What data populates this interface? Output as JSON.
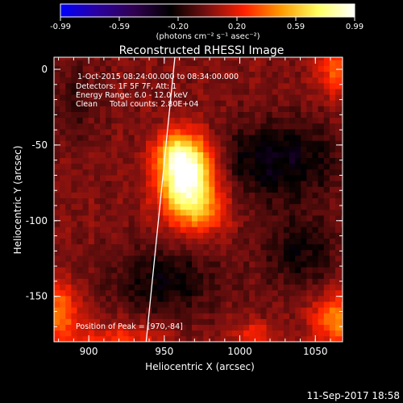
{
  "chart_data": {
    "type": "heatmap",
    "title": "Reconstructed RHESSI Image",
    "xlabel": "Heliocentric X (arcsec)",
    "ylabel": "Heliocentric Y (arcsec)",
    "xlim": [
      877,
      1068
    ],
    "ylim": [
      -180,
      8
    ],
    "xticks": [
      900,
      950,
      1000,
      1050
    ],
    "yticks": [
      0,
      -50,
      -100,
      -150
    ],
    "colorbar": {
      "ticks": [
        "-0.99",
        "-0.59",
        "-0.20",
        "0.20",
        "0.59",
        "0.99"
      ],
      "range": [
        -0.99,
        0.99
      ],
      "units": "(photons cm⁻² s⁻¹ asec⁻²)",
      "colormap": [
        "#0000ff",
        "#2a00a0",
        "#300050",
        "#000000",
        "#7a1010",
        "#ff2000",
        "#ff9a00",
        "#ffff60",
        "#ffffff"
      ]
    },
    "annotations": [
      "1-Oct-2015 08:24:00.000 to 08:34:00.000",
      "Detectors: 1F 5F 7F, Att: 1",
      "Energy Range: 6.0 - 12.0 keV",
      "Clean     Total counts: 2.80E+04"
    ],
    "peak": {
      "label": "Position of Peak = [970,-84]",
      "x": 970,
      "y": -84
    },
    "limb_line": {
      "x": [
        938,
        957
      ],
      "y": [
        -180,
        8
      ]
    },
    "sources": [
      {
        "x": 965,
        "y": -72,
        "sx": 13,
        "sy": 18,
        "amp": 1.05
      },
      {
        "x": 958,
        "y": -55,
        "sx": 10,
        "sy": 9,
        "amp": 0.35
      },
      {
        "x": 978,
        "y": -95,
        "sx": 12,
        "sy": 10,
        "amp": 0.25
      },
      {
        "x": 1065,
        "y": -165,
        "sx": 12,
        "sy": 12,
        "amp": 0.45
      },
      {
        "x": 880,
        "y": -160,
        "sx": 10,
        "sy": 14,
        "amp": 0.4
      },
      {
        "x": 920,
        "y": -178,
        "sx": 22,
        "sy": 8,
        "amp": 0.25
      },
      {
        "x": 1065,
        "y": 0,
        "sx": 10,
        "sy": 12,
        "amp": 0.35
      },
      {
        "x": 1010,
        "y": -175,
        "sx": 10,
        "sy": 6,
        "amp": 0.25
      }
    ],
    "negative_sources": [
      {
        "x": 1025,
        "y": -60,
        "sx": 30,
        "sy": 18,
        "amp": -0.3
      },
      {
        "x": 950,
        "y": -140,
        "sx": 25,
        "sy": 16,
        "amp": -0.25
      },
      {
        "x": 1040,
        "y": -120,
        "sx": 18,
        "sy": 18,
        "amp": -0.22
      },
      {
        "x": 890,
        "y": -20,
        "sx": 12,
        "sy": 20,
        "amp": -0.12
      }
    ]
  },
  "footer": {
    "timestamp": "11-Sep-2017 18:58"
  }
}
